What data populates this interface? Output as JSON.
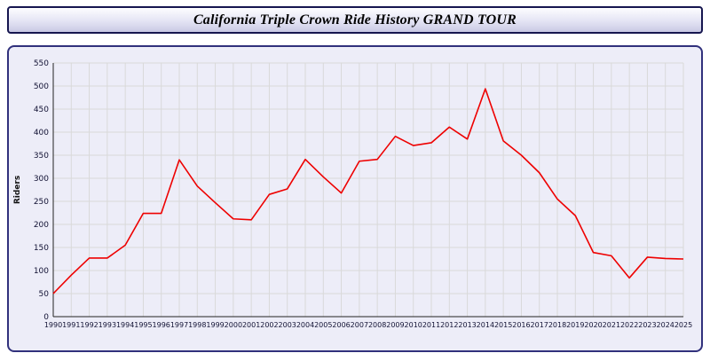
{
  "header": {
    "title": "California Triple Crown Ride History GRAND TOUR"
  },
  "colors": {
    "line": "#ee0000",
    "panel_background": "#ededf8",
    "border": "#31317c",
    "grid": "#d9d9d9"
  },
  "chart_data": {
    "type": "line",
    "title": "California Triple Crown Ride History GRAND TOUR",
    "xlabel": "",
    "ylabel": "Riders",
    "ylim": [
      0,
      550
    ],
    "ytick_step": 50,
    "grid": true,
    "legend": "none",
    "x": [
      1990,
      1991,
      1992,
      1993,
      1994,
      1995,
      1996,
      1997,
      1998,
      1999,
      2000,
      2001,
      2002,
      2003,
      2004,
      2005,
      2006,
      2007,
      2008,
      2009,
      2010,
      2011,
      2012,
      2013,
      2014,
      2015,
      2016,
      2017,
      2018,
      2019,
      2020,
      2021,
      2022,
      2023,
      2024,
      2025
    ],
    "values": [
      50,
      90,
      127,
      127,
      155,
      224,
      224,
      340,
      283,
      247,
      212,
      210,
      265,
      277,
      341,
      303,
      268,
      337,
      341,
      391,
      371,
      377,
      411,
      385,
      494,
      381,
      350,
      312,
      255,
      219,
      139,
      132,
      84,
      129,
      126,
      125
    ]
  }
}
